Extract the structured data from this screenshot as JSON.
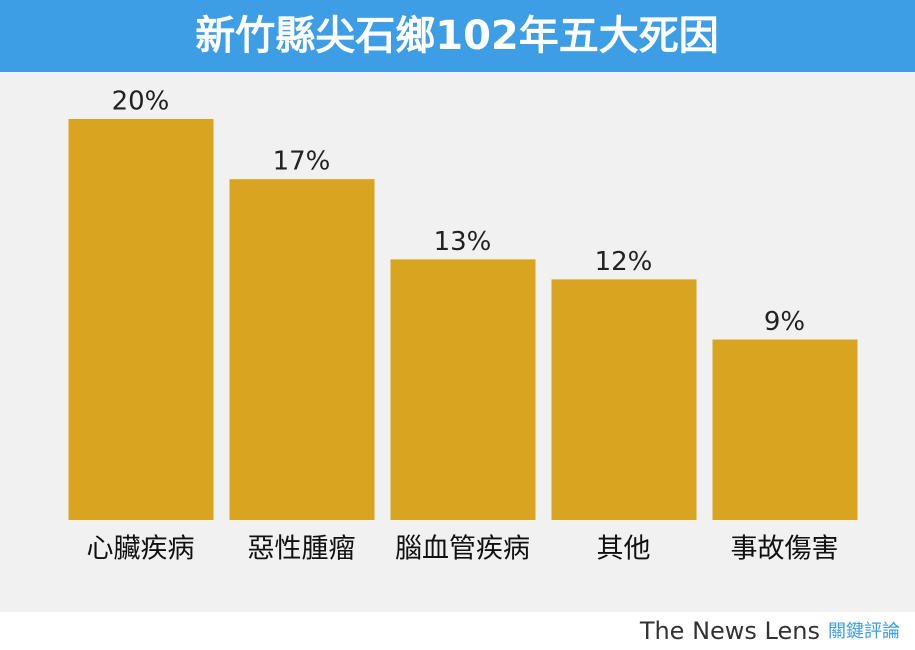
{
  "chart_data": {
    "type": "bar",
    "title": "新竹縣尖石鄉102年五大死因",
    "categories": [
      "心臟疾病",
      "惡性腫瘤",
      "腦血管疾病",
      "其他",
      "事故傷害"
    ],
    "values": [
      20,
      17,
      13,
      12,
      9
    ],
    "value_labels": [
      "20%",
      "17%",
      "13%",
      "12%",
      "9%"
    ],
    "color": "#d9a521",
    "brand": "The News Lens",
    "brand_cn": "關鍵評論"
  }
}
